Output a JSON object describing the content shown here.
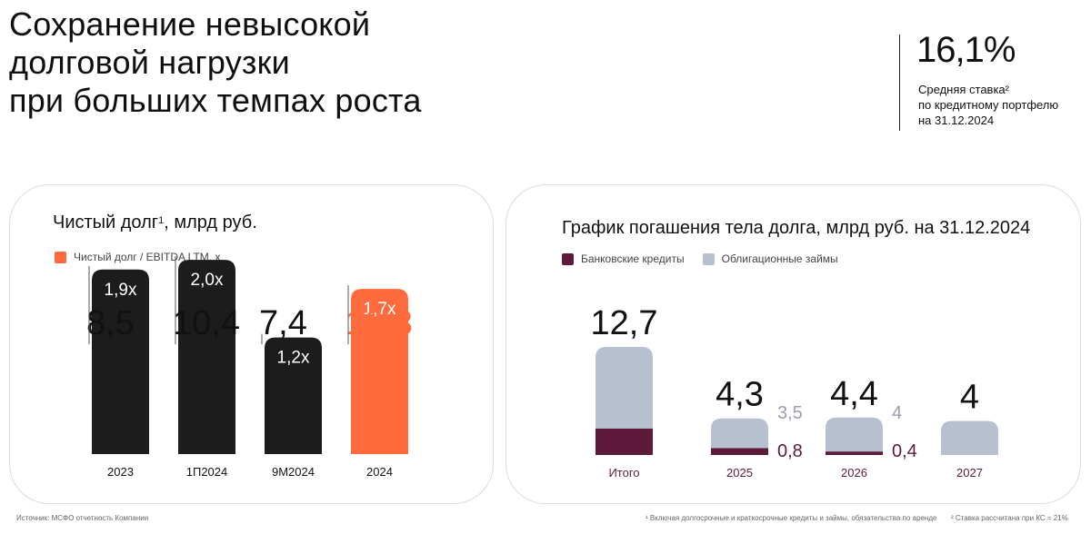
{
  "title_lines": [
    "Сохранение невысокой",
    "долговой нагрузки",
    "при больших темпах роста"
  ],
  "kpi": {
    "value": "16,1%",
    "label_lines": [
      "Средняя ставка²",
      "по кредитному портфелю",
      "на 31.12.2024"
    ]
  },
  "colors": {
    "black": "#1c1c1c",
    "orange": "#ff6b3d",
    "maroon": "#5e1a3a",
    "gray_blue": "#b7c0cf"
  },
  "footnotes": {
    "source": "Источник: МСФО отчетность Компании",
    "note1": "¹ Включая долгосрочные и краткосрочные кредиты и займы, обязательства по аренде",
    "note2": "² Ставка рассчитана при КС = 21%"
  },
  "chart_data": [
    {
      "type": "bar",
      "title": "Чистый долг",
      "title_sup": "1",
      "title_suffix": ", млрд руб.",
      "legend": [
        {
          "name": "Чистый долг / EBITDA LTM, x",
          "color": "#ff6b3d"
        }
      ],
      "categories": [
        "2023",
        "1П2024",
        "9М2024",
        "2024"
      ],
      "series": [
        {
          "name": "Чистый долг, млрд руб.",
          "values": [
            8.5,
            10.4,
            7.4,
            10.3
          ],
          "labels": [
            "8,5",
            "10,4",
            "7,4",
            "10,3"
          ]
        },
        {
          "name": "Чистый долг / EBITDA LTM, x",
          "values": [
            1.9,
            2.0,
            1.2,
            1.7
          ],
          "labels": [
            "1,9x",
            "2,0x",
            "1,2x",
            "1,7x"
          ]
        }
      ],
      "bar_colors": [
        "#1c1c1c",
        "#1c1c1c",
        "#1c1c1c",
        "#ff6b3d"
      ],
      "ylim": [
        0,
        2.3
      ]
    },
    {
      "type": "bar",
      "stacked": true,
      "title": "График погашения тела долга, млрд руб. на 31.12.2024",
      "legend": [
        {
          "name": "Банковские кредиты",
          "color": "#5e1a3a"
        },
        {
          "name": "Облигационные займы",
          "color": "#b7c0cf"
        }
      ],
      "categories": [
        "Итого",
        "2025",
        "2026",
        "2027"
      ],
      "totals": [
        12.7,
        4.3,
        4.4,
        4
      ],
      "total_labels": [
        "12,7",
        "4,3",
        "4,4",
        "4"
      ],
      "series": [
        {
          "name": "Банковские кредиты",
          "values": [
            3.1,
            0.8,
            0.4,
            0
          ],
          "labels": [
            "",
            "0,8",
            "0,4",
            ""
          ]
        },
        {
          "name": "Облигационные займы",
          "values": [
            9.6,
            3.5,
            4.0,
            4.0
          ],
          "labels": [
            "",
            "3,5",
            "4",
            ""
          ]
        }
      ],
      "ylim": [
        0,
        14
      ]
    }
  ]
}
